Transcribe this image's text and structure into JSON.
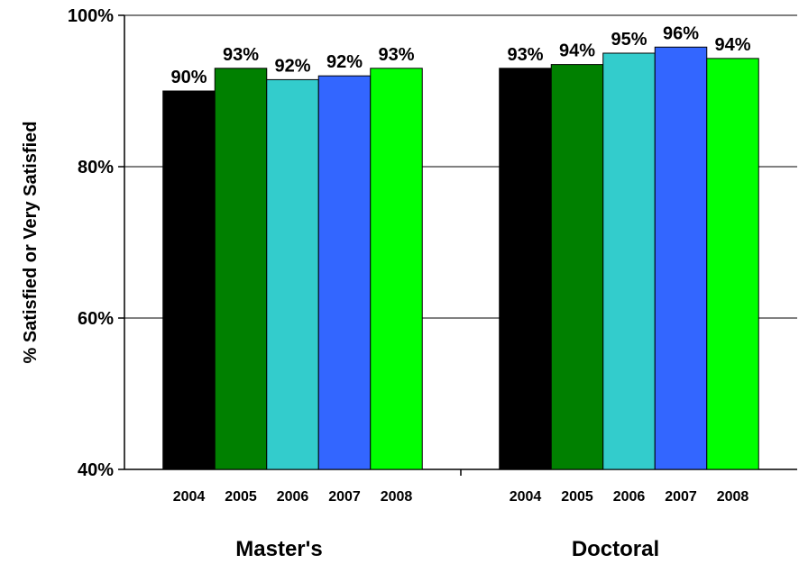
{
  "chart_data": {
    "type": "bar",
    "ylabel": "% Satisfied or Very Satisfied",
    "ylim": [
      40,
      100
    ],
    "yticks": [
      40,
      60,
      80,
      100
    ],
    "ytick_labels": [
      "40%",
      "60%",
      "80%",
      "100%"
    ],
    "grid": true,
    "legend": "none",
    "groups": [
      {
        "label": "Master's",
        "categories": [
          "2004",
          "2005",
          "2006",
          "2007",
          "2008"
        ],
        "values": [
          90,
          93,
          91.5,
          92,
          93
        ],
        "data_labels": [
          "90%",
          "93%",
          "92%",
          "92%",
          "93%"
        ]
      },
      {
        "label": "Doctoral",
        "categories": [
          "2004",
          "2005",
          "2006",
          "2007",
          "2008"
        ],
        "values": [
          93,
          93.5,
          95,
          95.8,
          94.3
        ],
        "data_labels": [
          "93%",
          "94%",
          "95%",
          "96%",
          "94%"
        ]
      }
    ],
    "colors": [
      "#000000",
      "#008000",
      "#33CCCC",
      "#3366FF",
      "#00FF00"
    ]
  }
}
